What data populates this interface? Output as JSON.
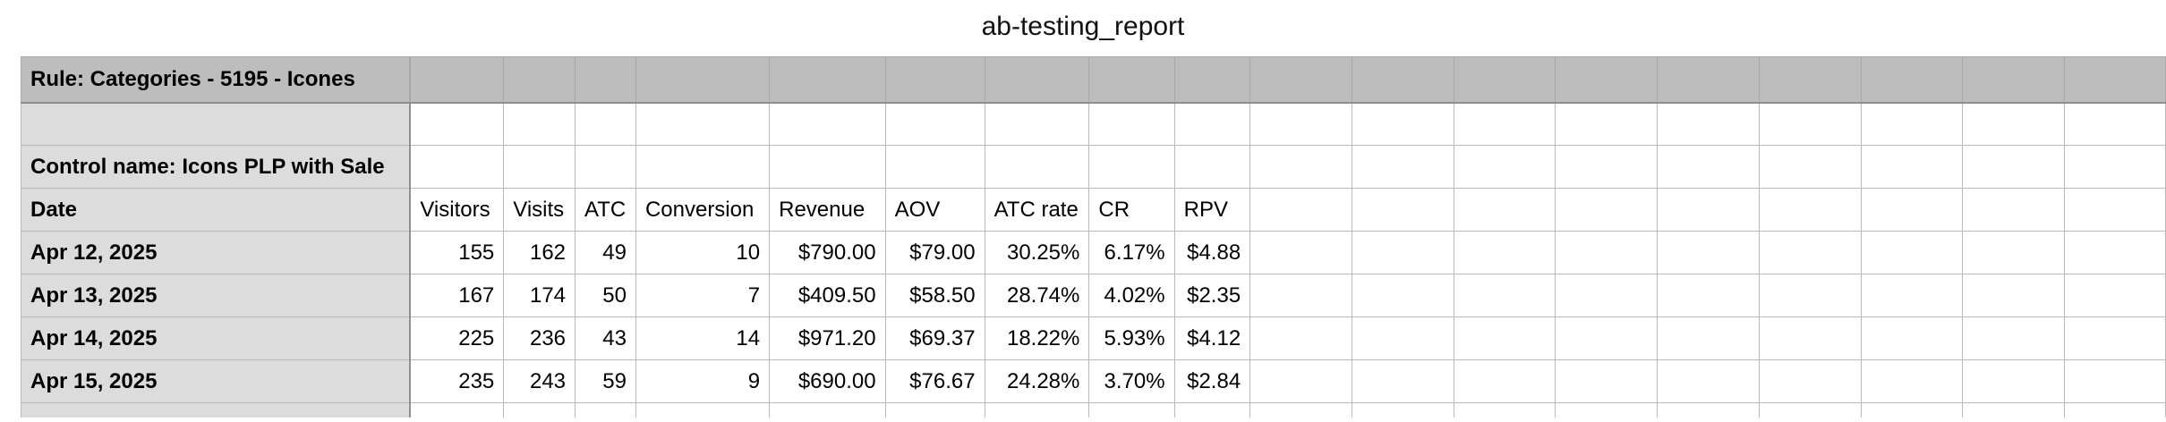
{
  "sheet": {
    "title": "ab-testing_report"
  },
  "table": {
    "rule_title": "Rule: Categories - 5195 - Icones",
    "control_label": "Control name: Icons PLP with Sale",
    "date_header": "Date",
    "columns": [
      "Visitors",
      "Visits",
      "ATC",
      "Conversion",
      "Revenue",
      "AOV",
      "ATC rate",
      "CR",
      "RPV"
    ],
    "rows": [
      {
        "date": "Apr 12, 2025",
        "cells": [
          "155",
          "162",
          "49",
          "10",
          "$790.00",
          "$79.00",
          "30.25%",
          "6.17%",
          "$4.88"
        ]
      },
      {
        "date": "Apr 13, 2025",
        "cells": [
          "167",
          "174",
          "50",
          "7",
          "$409.50",
          "$58.50",
          "28.74%",
          "4.02%",
          "$2.35"
        ]
      },
      {
        "date": "Apr 14, 2025",
        "cells": [
          "225",
          "236",
          "43",
          "14",
          "$971.20",
          "$69.37",
          "18.22%",
          "5.93%",
          "$4.12"
        ]
      },
      {
        "date": "Apr 15, 2025",
        "cells": [
          "235",
          "243",
          "59",
          "9",
          "$690.00",
          "$76.67",
          "24.28%",
          "3.70%",
          "$2.84"
        ]
      }
    ]
  },
  "colors": {
    "header_fill": "#bdbdbd",
    "row_header_fill": "#dcdcdc",
    "grid_line": "#b9b9b9"
  }
}
